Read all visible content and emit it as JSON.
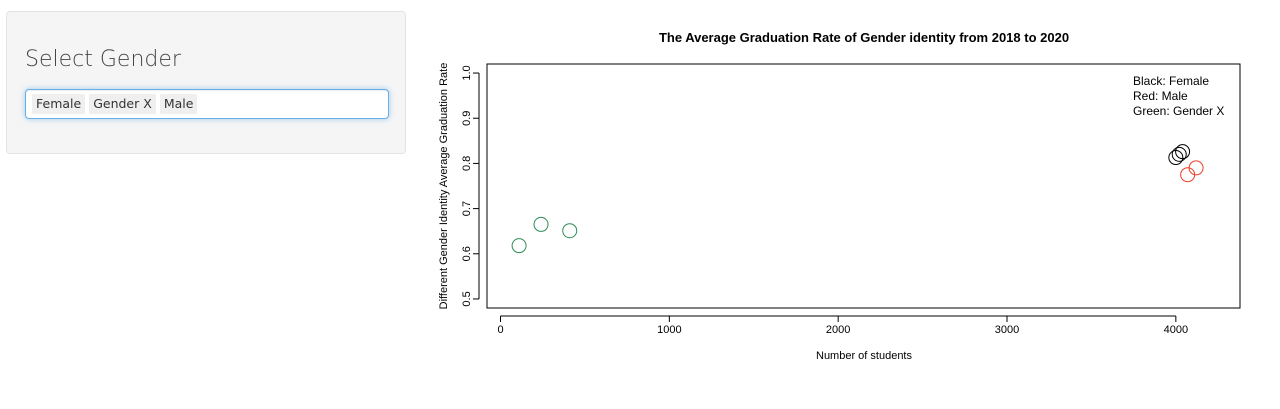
{
  "sidebar": {
    "title": "Select Gender",
    "selected": [
      "Female",
      "Gender X",
      "Male"
    ]
  },
  "chart_data": {
    "type": "scatter",
    "title": "The Average Graduation Rate of Gender identity from 2018 to 2020",
    "xlabel": "Number of students",
    "ylabel": "Different Gender Identity Average Graduation Rate",
    "xlim": [
      -80,
      4380
    ],
    "ylim": [
      0.48,
      1.02
    ],
    "xticks": [
      0,
      1000,
      2000,
      3000,
      4000
    ],
    "yticks": [
      0.5,
      0.6,
      0.7,
      0.8,
      0.9,
      1.0
    ],
    "legend_text": [
      "Black: Female",
      "Red: Male",
      "Green: Gender X"
    ],
    "legend_position": "top-right",
    "series": [
      {
        "color": "#000000",
        "x": [
          4000,
          4020,
          4040
        ],
        "y": [
          0.813,
          0.82,
          0.826
        ]
      },
      {
        "color": "#e8402a",
        "x": [
          4070,
          4120
        ],
        "y": [
          0.775,
          0.79
        ]
      },
      {
        "color": "#2e8b57",
        "x": [
          110,
          240,
          410
        ],
        "y": [
          0.618,
          0.665,
          0.651
        ]
      }
    ]
  }
}
